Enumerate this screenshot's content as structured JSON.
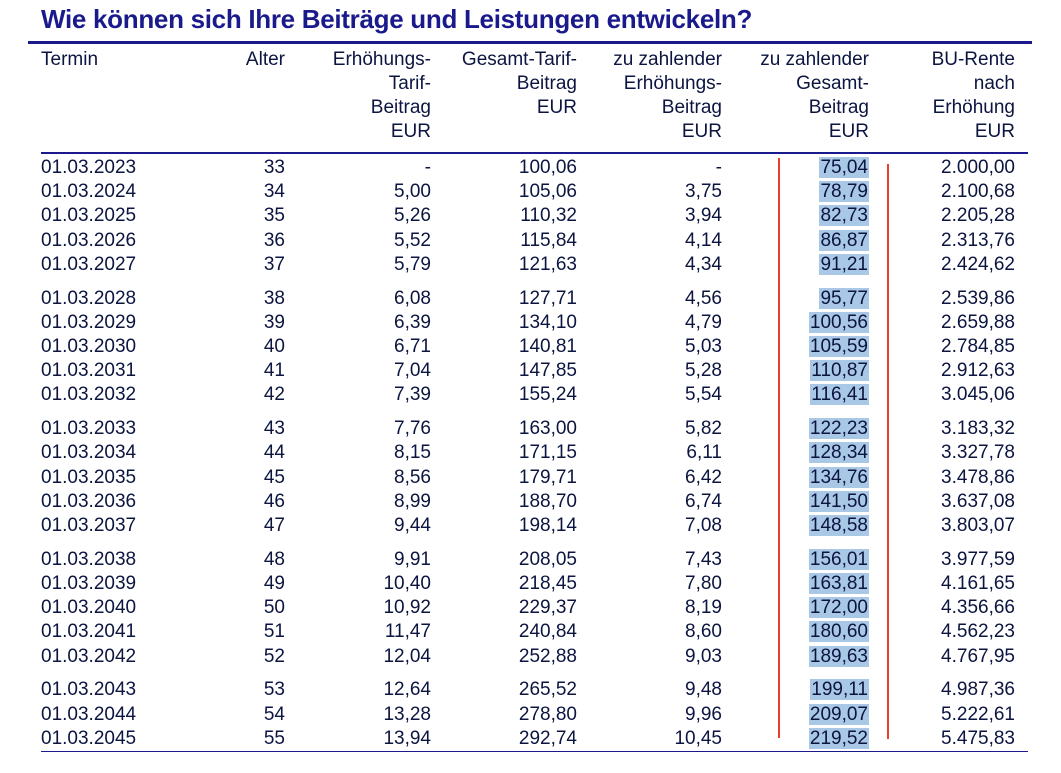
{
  "title": "Wie können sich Ihre Beiträge und Leistungen entwickeln?",
  "headers": {
    "termin": [
      "Termin"
    ],
    "alter": [
      "Alter"
    ],
    "erhoehung": [
      "Erhöhungs-",
      "Tarif-",
      "Beitrag",
      "EUR"
    ],
    "gesamt": [
      "Gesamt-Tarif-",
      "Beitrag",
      "EUR"
    ],
    "zahl_erhoehung": [
      "zu zahlender",
      "Erhöhungs-",
      "Beitrag",
      "EUR"
    ],
    "zahl_gesamt": [
      "zu zahlender",
      "Gesamt-",
      "Beitrag",
      "EUR"
    ],
    "bu_rente": [
      "BU-Rente",
      "nach",
      "Erhöhung",
      "EUR"
    ]
  },
  "highlight_color": "#a8c8e6",
  "annotation_color": "#e8402a",
  "rows": [
    {
      "termin": "01.03.2023",
      "alter": "33",
      "erh": "-",
      "ges": "100,06",
      "zerh": "-",
      "zges": "75,04",
      "bu": "2.000,00"
    },
    {
      "termin": "01.03.2024",
      "alter": "34",
      "erh": "5,00",
      "ges": "105,06",
      "zerh": "3,75",
      "zges": "78,79",
      "bu": "2.100,68"
    },
    {
      "termin": "01.03.2025",
      "alter": "35",
      "erh": "5,26",
      "ges": "110,32",
      "zerh": "3,94",
      "zges": "82,73",
      "bu": "2.205,28"
    },
    {
      "termin": "01.03.2026",
      "alter": "36",
      "erh": "5,52",
      "ges": "115,84",
      "zerh": "4,14",
      "zges": "86,87",
      "bu": "2.313,76"
    },
    {
      "termin": "01.03.2027",
      "alter": "37",
      "erh": "5,79",
      "ges": "121,63",
      "zerh": "4,34",
      "zges": "91,21",
      "bu": "2.424,62"
    },
    {
      "termin": "01.03.2028",
      "alter": "38",
      "erh": "6,08",
      "ges": "127,71",
      "zerh": "4,56",
      "zges": "95,77",
      "bu": "2.539,86"
    },
    {
      "termin": "01.03.2029",
      "alter": "39",
      "erh": "6,39",
      "ges": "134,10",
      "zerh": "4,79",
      "zges": "100,56",
      "bu": "2.659,88"
    },
    {
      "termin": "01.03.2030",
      "alter": "40",
      "erh": "6,71",
      "ges": "140,81",
      "zerh": "5,03",
      "zges": "105,59",
      "bu": "2.784,85"
    },
    {
      "termin": "01.03.2031",
      "alter": "41",
      "erh": "7,04",
      "ges": "147,85",
      "zerh": "5,28",
      "zges": "110,87",
      "bu": "2.912,63"
    },
    {
      "termin": "01.03.2032",
      "alter": "42",
      "erh": "7,39",
      "ges": "155,24",
      "zerh": "5,54",
      "zges": "116,41",
      "bu": "3.045,06"
    },
    {
      "termin": "01.03.2033",
      "alter": "43",
      "erh": "7,76",
      "ges": "163,00",
      "zerh": "5,82",
      "zges": "122,23",
      "bu": "3.183,32"
    },
    {
      "termin": "01.03.2034",
      "alter": "44",
      "erh": "8,15",
      "ges": "171,15",
      "zerh": "6,11",
      "zges": "128,34",
      "bu": "3.327,78"
    },
    {
      "termin": "01.03.2035",
      "alter": "45",
      "erh": "8,56",
      "ges": "179,71",
      "zerh": "6,42",
      "zges": "134,76",
      "bu": "3.478,86"
    },
    {
      "termin": "01.03.2036",
      "alter": "46",
      "erh": "8,99",
      "ges": "188,70",
      "zerh": "6,74",
      "zges": "141,50",
      "bu": "3.637,08"
    },
    {
      "termin": "01.03.2037",
      "alter": "47",
      "erh": "9,44",
      "ges": "198,14",
      "zerh": "7,08",
      "zges": "148,58",
      "bu": "3.803,07"
    },
    {
      "termin": "01.03.2038",
      "alter": "48",
      "erh": "9,91",
      "ges": "208,05",
      "zerh": "7,43",
      "zges": "156,01",
      "bu": "3.977,59"
    },
    {
      "termin": "01.03.2039",
      "alter": "49",
      "erh": "10,40",
      "ges": "218,45",
      "zerh": "7,80",
      "zges": "163,81",
      "bu": "4.161,65"
    },
    {
      "termin": "01.03.2040",
      "alter": "50",
      "erh": "10,92",
      "ges": "229,37",
      "zerh": "8,19",
      "zges": "172,00",
      "bu": "4.356,66"
    },
    {
      "termin": "01.03.2041",
      "alter": "51",
      "erh": "11,47",
      "ges": "240,84",
      "zerh": "8,60",
      "zges": "180,60",
      "bu": "4.562,23"
    },
    {
      "termin": "01.03.2042",
      "alter": "52",
      "erh": "12,04",
      "ges": "252,88",
      "zerh": "9,03",
      "zges": "189,63",
      "bu": "4.767,95"
    },
    {
      "termin": "01.03.2043",
      "alter": "53",
      "erh": "12,64",
      "ges": "265,52",
      "zerh": "9,48",
      "zges": "199,11",
      "bu": "4.987,36"
    },
    {
      "termin": "01.03.2044",
      "alter": "54",
      "erh": "13,28",
      "ges": "278,80",
      "zerh": "9,96",
      "zges": "209,07",
      "bu": "5.222,61"
    },
    {
      "termin": "01.03.2045",
      "alter": "55",
      "erh": "13,94",
      "ges": "292,74",
      "zerh": "10,45",
      "zges": "219,52",
      "bu": "5.475,83"
    }
  ]
}
